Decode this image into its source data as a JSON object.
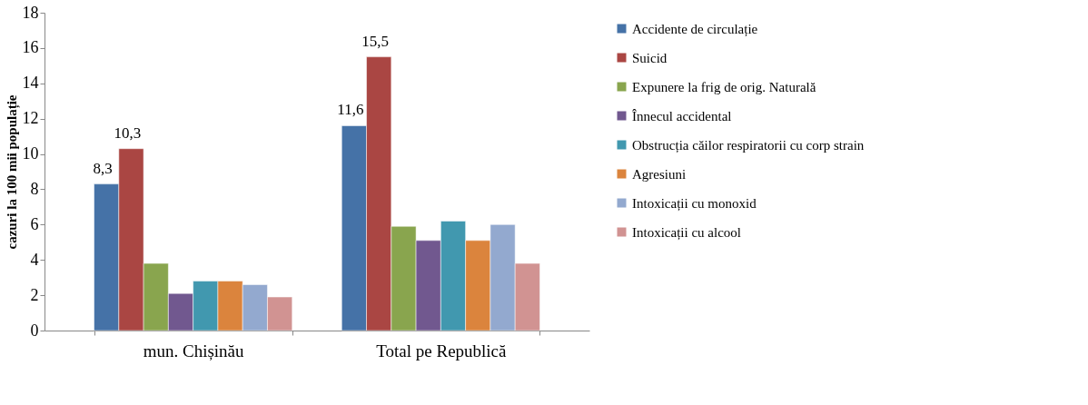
{
  "chart_data": {
    "type": "bar",
    "ylabel": "cazuri la 100 mii populație",
    "categories": [
      "mun. Chișinău",
      "Total pe Republică"
    ],
    "series": [
      {
        "name": "Accidente de circulație",
        "color": "#4572a7",
        "values": [
          8.3,
          11.6
        ],
        "value_labels": [
          "8,3",
          "11,6"
        ]
      },
      {
        "name": "Suicid",
        "color": "#aa4643",
        "values": [
          10.3,
          15.5
        ],
        "value_labels": [
          "10,3",
          "15,5"
        ]
      },
      {
        "name": "Expunere la frig de orig. Naturală",
        "color": "#89a54e",
        "values": [
          3.8,
          5.9
        ]
      },
      {
        "name": "Înnecul accidental",
        "color": "#71588f",
        "values": [
          2.1,
          5.1
        ]
      },
      {
        "name": "Obstrucția căilor respiratorii cu corp strain",
        "color": "#4198af",
        "values": [
          2.8,
          6.2
        ]
      },
      {
        "name": "Agresiuni",
        "color": "#db843d",
        "values": [
          2.8,
          5.1
        ]
      },
      {
        "name": "Intoxicații cu monoxid",
        "color": "#93a9cf",
        "values": [
          2.6,
          6.0
        ]
      },
      {
        "name": "Intoxicații cu alcool",
        "color": "#d19392",
        "values": [
          1.9,
          3.8
        ]
      }
    ],
    "ylim": [
      0,
      18
    ],
    "yticks": [
      0,
      2,
      4,
      6,
      8,
      10,
      12,
      14,
      16,
      18
    ],
    "grid": false,
    "legend": "right"
  }
}
